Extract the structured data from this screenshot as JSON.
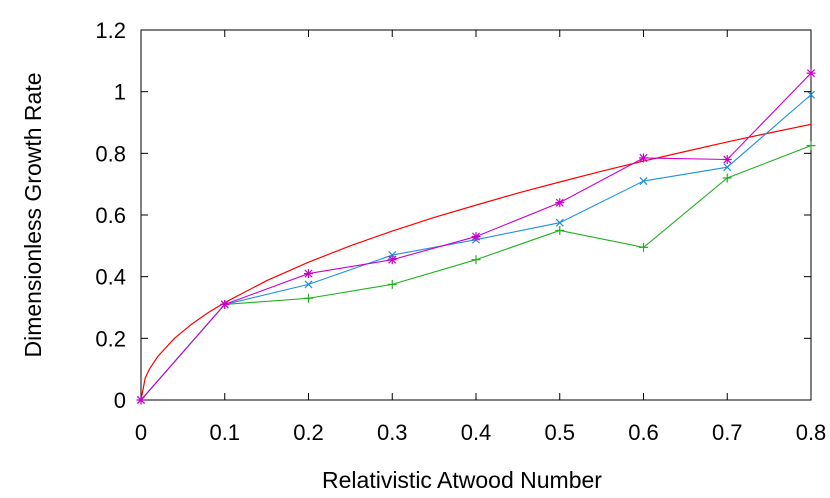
{
  "chart_data": {
    "type": "line",
    "title": "",
    "xlabel": "Relativistic Atwood Number",
    "ylabel": "Dimensionless Growth Rate",
    "xlim": [
      0,
      0.8
    ],
    "ylim": [
      0,
      1.2
    ],
    "xticks": [
      "0",
      "0.1",
      "0.2",
      "0.3",
      "0.4",
      "0.5",
      "0.6",
      "0.7",
      "0.8"
    ],
    "yticks": [
      "0",
      "0.2",
      "0.4",
      "0.6",
      "0.8",
      "1",
      "1.2"
    ],
    "grid": false,
    "legend": "none",
    "curve": {
      "color": "#ff0000",
      "formula": "y = sqrt(x)",
      "x": [
        0,
        0.005,
        0.01,
        0.02,
        0.04,
        0.06,
        0.08,
        0.1,
        0.15,
        0.2,
        0.25,
        0.3,
        0.35,
        0.4,
        0.45,
        0.5,
        0.55,
        0.6,
        0.65,
        0.7,
        0.75,
        0.8
      ],
      "y": [
        0,
        0.071,
        0.1,
        0.141,
        0.2,
        0.245,
        0.283,
        0.316,
        0.387,
        0.447,
        0.5,
        0.548,
        0.592,
        0.632,
        0.671,
        0.707,
        0.742,
        0.775,
        0.806,
        0.837,
        0.866,
        0.894
      ]
    },
    "series": [
      {
        "marker": "plus",
        "color": "#1fb01f",
        "x": [
          0,
          0.1,
          0.2,
          0.3,
          0.4,
          0.5,
          0.6,
          0.7,
          0.8
        ],
        "y": [
          0,
          0.31,
          0.33,
          0.375,
          0.455,
          0.55,
          0.495,
          0.72,
          0.825
        ]
      },
      {
        "marker": "x",
        "color": "#1e90e0",
        "x": [
          0,
          0.1,
          0.2,
          0.3,
          0.4,
          0.5,
          0.6,
          0.7,
          0.8
        ],
        "y": [
          0,
          0.31,
          0.375,
          0.47,
          0.52,
          0.575,
          0.71,
          0.755,
          0.99
        ]
      },
      {
        "marker": "star",
        "color": "#cc00cc",
        "x": [
          0,
          0.1,
          0.2,
          0.3,
          0.4,
          0.5,
          0.6,
          0.7,
          0.8
        ],
        "y": [
          0,
          0.31,
          0.41,
          0.455,
          0.53,
          0.64,
          0.785,
          0.78,
          1.06
        ]
      }
    ]
  }
}
